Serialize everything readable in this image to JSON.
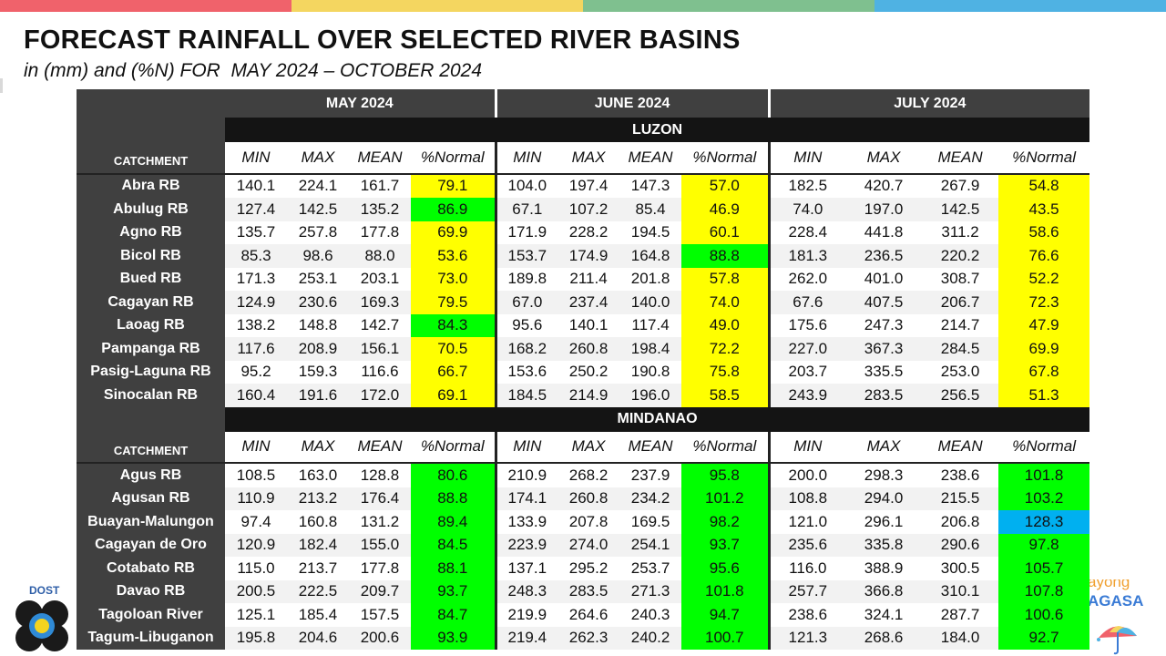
{
  "colors": {
    "bar": [
      "#f0626b",
      "#f4d660",
      "#7fc08f",
      "#4fb2e3"
    ],
    "below": "#ffff00",
    "near": "#00ff00",
    "above": "#00b0f0"
  },
  "title": "FORECAST RAINFALL OVER SELECTED RIVER BASINS",
  "subtitle": "in (mm) and (%N) FOR  MAY 2024 – OCTOBER 2024",
  "months": [
    "MAY 2024",
    "JUNE 2024",
    "JULY 2024"
  ],
  "column_headers": {
    "catchment": "CATCHMENT",
    "min": "MIN",
    "max": "MAX",
    "mean": "MEAN",
    "pct": "%Normal"
  },
  "regions": [
    {
      "name": "LUZON",
      "rows": [
        {
          "name": "Abra RB",
          "v": [
            "140.1",
            "224.1",
            "161.7",
            "79.1",
            "104.0",
            "197.4",
            "147.3",
            "57.0",
            "182.5",
            "420.7",
            "267.9",
            "54.8"
          ],
          "c": [
            "y",
            "y",
            "y"
          ]
        },
        {
          "name": "Abulug RB",
          "v": [
            "127.4",
            "142.5",
            "135.2",
            "86.9",
            "67.1",
            "107.2",
            "85.4",
            "46.9",
            "74.0",
            "197.0",
            "142.5",
            "43.5"
          ],
          "c": [
            "g",
            "y",
            "y"
          ]
        },
        {
          "name": "Agno RB",
          "v": [
            "135.7",
            "257.8",
            "177.8",
            "69.9",
            "171.9",
            "228.2",
            "194.5",
            "60.1",
            "228.4",
            "441.8",
            "311.2",
            "58.6"
          ],
          "c": [
            "y",
            "y",
            "y"
          ]
        },
        {
          "name": "Bicol RB",
          "v": [
            "85.3",
            "98.6",
            "88.0",
            "53.6",
            "153.7",
            "174.9",
            "164.8",
            "88.8",
            "181.3",
            "236.5",
            "220.2",
            "76.6"
          ],
          "c": [
            "y",
            "g",
            "y"
          ]
        },
        {
          "name": "Bued RB",
          "v": [
            "171.3",
            "253.1",
            "203.1",
            "73.0",
            "189.8",
            "211.4",
            "201.8",
            "57.8",
            "262.0",
            "401.0",
            "308.7",
            "52.2"
          ],
          "c": [
            "y",
            "y",
            "y"
          ]
        },
        {
          "name": "Cagayan RB",
          "v": [
            "124.9",
            "230.6",
            "169.3",
            "79.5",
            "67.0",
            "237.4",
            "140.0",
            "74.0",
            "67.6",
            "407.5",
            "206.7",
            "72.3"
          ],
          "c": [
            "y",
            "y",
            "y"
          ]
        },
        {
          "name": "Laoag RB",
          "v": [
            "138.2",
            "148.8",
            "142.7",
            "84.3",
            "95.6",
            "140.1",
            "117.4",
            "49.0",
            "175.6",
            "247.3",
            "214.7",
            "47.9"
          ],
          "c": [
            "g",
            "y",
            "y"
          ]
        },
        {
          "name": "Pampanga RB",
          "v": [
            "117.6",
            "208.9",
            "156.1",
            "70.5",
            "168.2",
            "260.8",
            "198.4",
            "72.2",
            "227.0",
            "367.3",
            "284.5",
            "69.9"
          ],
          "c": [
            "y",
            "y",
            "y"
          ]
        },
        {
          "name": "Pasig-Laguna RB",
          "v": [
            "95.2",
            "159.3",
            "116.6",
            "66.7",
            "153.6",
            "250.2",
            "190.8",
            "75.8",
            "203.7",
            "335.5",
            "253.0",
            "67.8"
          ],
          "c": [
            "y",
            "y",
            "y"
          ]
        },
        {
          "name": "Sinocalan RB",
          "v": [
            "160.4",
            "191.6",
            "172.0",
            "69.1",
            "184.5",
            "214.9",
            "196.0",
            "58.5",
            "243.9",
            "283.5",
            "256.5",
            "51.3"
          ],
          "c": [
            "y",
            "y",
            "y"
          ]
        }
      ]
    },
    {
      "name": "MINDANAO",
      "rows": [
        {
          "name": "Agus RB",
          "v": [
            "108.5",
            "163.0",
            "128.8",
            "80.6",
            "210.9",
            "268.2",
            "237.9",
            "95.8",
            "200.0",
            "298.3",
            "238.6",
            "101.8"
          ],
          "c": [
            "g",
            "g",
            "g"
          ]
        },
        {
          "name": "Agusan RB",
          "v": [
            "110.9",
            "213.2",
            "176.4",
            "88.8",
            "174.1",
            "260.8",
            "234.2",
            "101.2",
            "108.8",
            "294.0",
            "215.5",
            "103.2"
          ],
          "c": [
            "g",
            "g",
            "g"
          ]
        },
        {
          "name": "Buayan-Malungon",
          "v": [
            "97.4",
            "160.8",
            "131.2",
            "89.4",
            "133.9",
            "207.8",
            "169.5",
            "98.2",
            "121.0",
            "296.1",
            "206.8",
            "128.3"
          ],
          "c": [
            "g",
            "g",
            "b"
          ]
        },
        {
          "name": "Cagayan de Oro",
          "v": [
            "120.9",
            "182.4",
            "155.0",
            "84.5",
            "223.9",
            "274.0",
            "254.1",
            "93.7",
            "235.6",
            "335.8",
            "290.6",
            "97.8"
          ],
          "c": [
            "g",
            "g",
            "g"
          ]
        },
        {
          "name": "Cotabato RB",
          "v": [
            "115.0",
            "213.7",
            "177.8",
            "88.1",
            "137.1",
            "295.2",
            "253.7",
            "95.6",
            "116.0",
            "388.9",
            "300.5",
            "105.7"
          ],
          "c": [
            "g",
            "g",
            "g"
          ]
        },
        {
          "name": "Davao RB",
          "v": [
            "200.5",
            "222.5",
            "209.7",
            "93.7",
            "248.3",
            "283.5",
            "271.3",
            "101.8",
            "257.7",
            "366.8",
            "310.1",
            "107.8"
          ],
          "c": [
            "g",
            "g",
            "g"
          ]
        },
        {
          "name": "Tagoloan River",
          "v": [
            "125.1",
            "185.4",
            "157.5",
            "84.7",
            "219.9",
            "264.6",
            "240.3",
            "94.7",
            "238.6",
            "324.1",
            "287.7",
            "100.6"
          ],
          "c": [
            "g",
            "g",
            "g"
          ]
        },
        {
          "name": "Tagum-Libuganon",
          "v": [
            "195.8",
            "204.6",
            "200.6",
            "93.9",
            "219.4",
            "262.3",
            "240.2",
            "100.7",
            "121.3",
            "268.6",
            "184.0",
            "92.7"
          ],
          "c": [
            "g",
            "g",
            "g"
          ]
        }
      ]
    }
  ],
  "logos": {
    "left": {
      "text": "DOST",
      "icon": "dost-logo-icon"
    },
    "right": {
      "text_top": "ayong",
      "text_bottom": "AGASA",
      "icon": "umbrella-logo-icon"
    }
  }
}
